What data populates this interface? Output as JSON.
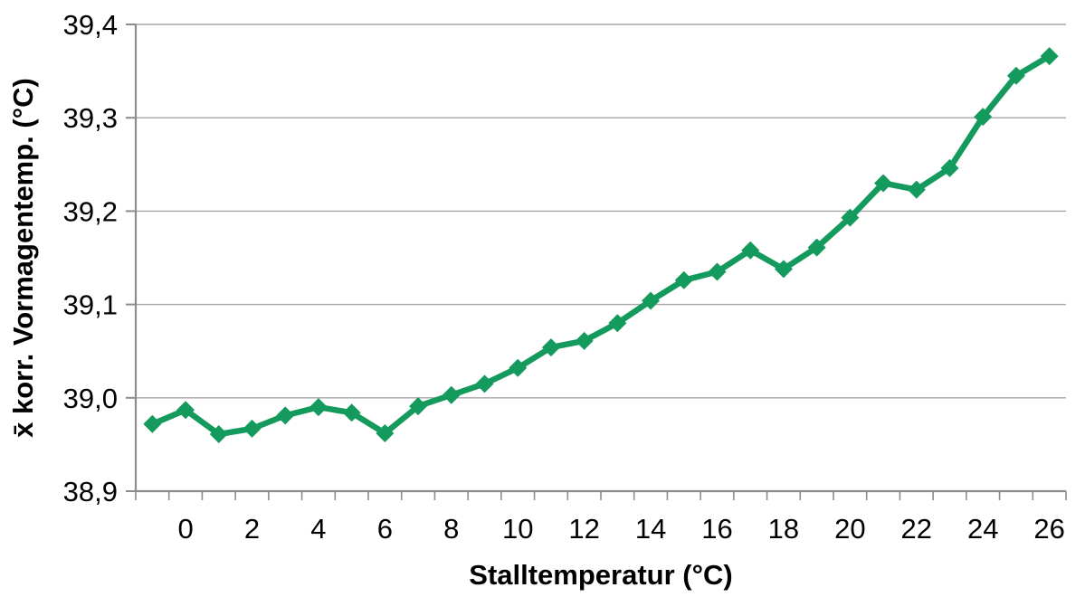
{
  "chart_data": {
    "type": "line",
    "title": "",
    "xlabel": "Stalltemperatur (°C)",
    "ylabel": "x̄ korr. Vormagentemp. (°C)",
    "x": [
      -1,
      0,
      1,
      2,
      3,
      4,
      5,
      6,
      7,
      8,
      9,
      10,
      11,
      12,
      13,
      14,
      15,
      16,
      17,
      18,
      19,
      20,
      21,
      22,
      23,
      24,
      25,
      26
    ],
    "y": [
      38.972,
      38.987,
      38.961,
      38.967,
      38.981,
      38.99,
      38.984,
      38.962,
      38.991,
      39.003,
      39.015,
      39.032,
      39.054,
      39.061,
      39.08,
      39.104,
      39.126,
      39.135,
      39.158,
      39.138,
      39.161,
      39.193,
      39.23,
      39.223,
      39.246,
      39.301,
      39.345,
      39.366
    ],
    "xlim": [
      -1.5,
      26.5
    ],
    "ylim": [
      38.9,
      39.4
    ],
    "x_minor_tick_step": 1,
    "xticks": [
      {
        "value": 0,
        "label": "0"
      },
      {
        "value": 2,
        "label": "2"
      },
      {
        "value": 4,
        "label": "4"
      },
      {
        "value": 6,
        "label": "6"
      },
      {
        "value": 8,
        "label": "8"
      },
      {
        "value": 10,
        "label": "10"
      },
      {
        "value": 12,
        "label": "12"
      },
      {
        "value": 14,
        "label": "14"
      },
      {
        "value": 16,
        "label": "16"
      },
      {
        "value": 18,
        "label": "18"
      },
      {
        "value": 20,
        "label": "20"
      },
      {
        "value": 22,
        "label": "22"
      },
      {
        "value": 24,
        "label": "24"
      },
      {
        "value": 26,
        "label": "26"
      }
    ],
    "yticks": [
      {
        "value": 38.9,
        "label": "38,9"
      },
      {
        "value": 39.0,
        "label": "39,0"
      },
      {
        "value": 39.1,
        "label": "39,1"
      },
      {
        "value": 39.2,
        "label": "39,2"
      },
      {
        "value": 39.3,
        "label": "39,3"
      },
      {
        "value": 39.4,
        "label": "39,4"
      }
    ],
    "grid": "horizontal",
    "legend": "none",
    "marker": "diamond",
    "colors": {
      "line": "#139a5c",
      "grid": "#a6a6a6",
      "axis": "#8c8c8c",
      "text": "#000000",
      "background": "#ffffff"
    }
  }
}
